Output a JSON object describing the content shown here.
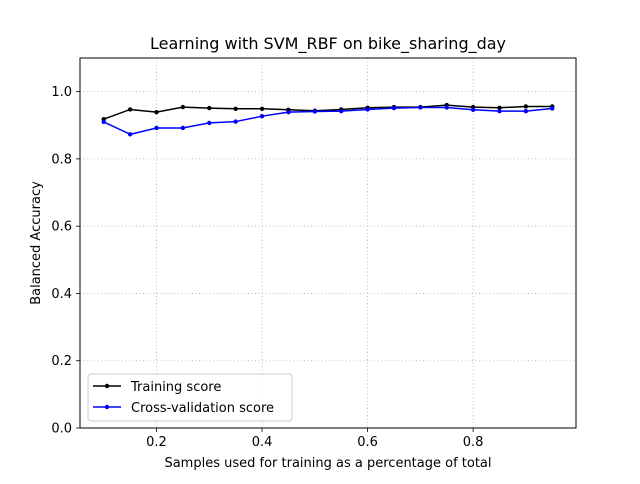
{
  "chart_data": {
    "type": "line",
    "title": "Learning with SVM_RBF on bike_sharing_day",
    "xlabel": "Samples used for training as a percentage of total",
    "ylabel": "Balanced Accuracy",
    "xlim": [
      0.055,
      0.995
    ],
    "ylim": [
      0.0,
      1.1
    ],
    "xticks": [
      0.2,
      0.4,
      0.6,
      0.8
    ],
    "xtick_labels": [
      "0.2",
      "0.4",
      "0.6",
      "0.8"
    ],
    "yticks": [
      0.0,
      0.2,
      0.4,
      0.6,
      0.8,
      1.0
    ],
    "ytick_labels": [
      "0.0",
      "0.2",
      "0.4",
      "0.6",
      "0.8",
      "1.0"
    ],
    "grid": true,
    "legend_position": "lower-left",
    "x": [
      0.1,
      0.15,
      0.2,
      0.25,
      0.3,
      0.35,
      0.4,
      0.45,
      0.5,
      0.55,
      0.6,
      0.65,
      0.7,
      0.75,
      0.8,
      0.85,
      0.9,
      0.95
    ],
    "series": [
      {
        "name": "Training score",
        "color": "#000000",
        "values": [
          0.918,
          0.947,
          0.939,
          0.954,
          0.951,
          0.949,
          0.949,
          0.946,
          0.943,
          0.947,
          0.952,
          0.954,
          0.954,
          0.96,
          0.954,
          0.952,
          0.956,
          0.956
        ]
      },
      {
        "name": "Cross-validation score",
        "color": "#0000ff",
        "values": [
          0.91,
          0.873,
          0.892,
          0.892,
          0.907,
          0.911,
          0.927,
          0.939,
          0.941,
          0.942,
          0.947,
          0.951,
          0.953,
          0.953,
          0.946,
          0.942,
          0.942,
          0.95
        ]
      }
    ]
  }
}
